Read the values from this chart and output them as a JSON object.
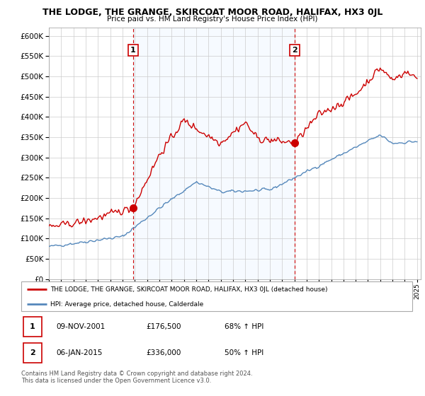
{
  "title": "THE LODGE, THE GRANGE, SKIRCOAT MOOR ROAD, HALIFAX, HX3 0JL",
  "subtitle": "Price paid vs. HM Land Registry's House Price Index (HPI)",
  "ylim": [
    0,
    620000
  ],
  "yticks": [
    0,
    50000,
    100000,
    150000,
    200000,
    250000,
    300000,
    350000,
    400000,
    450000,
    500000,
    550000,
    600000
  ],
  "red_line_color": "#cc0000",
  "blue_line_color": "#5588bb",
  "fill_color": "#ddeeff",
  "purchase1_date": 2001.86,
  "purchase1_price": 176500,
  "purchase1_label": "1",
  "purchase2_date": 2015.02,
  "purchase2_price": 336000,
  "purchase2_label": "2",
  "vline_color": "#cc0000",
  "marker_color": "#cc0000",
  "legend_red_label": "THE LODGE, THE GRANGE, SKIRCOAT MOOR ROAD, HALIFAX, HX3 0JL (detached house)",
  "legend_blue_label": "HPI: Average price, detached house, Calderdale",
  "table_row1": [
    "1",
    "09-NOV-2001",
    "£176,500",
    "68% ↑ HPI"
  ],
  "table_row2": [
    "2",
    "06-JAN-2015",
    "£336,000",
    "50% ↑ HPI"
  ],
  "footnote1": "Contains HM Land Registry data © Crown copyright and database right 2024.",
  "footnote2": "This data is licensed under the Open Government Licence v3.0.",
  "background_color": "#ffffff",
  "grid_color": "#cccccc"
}
